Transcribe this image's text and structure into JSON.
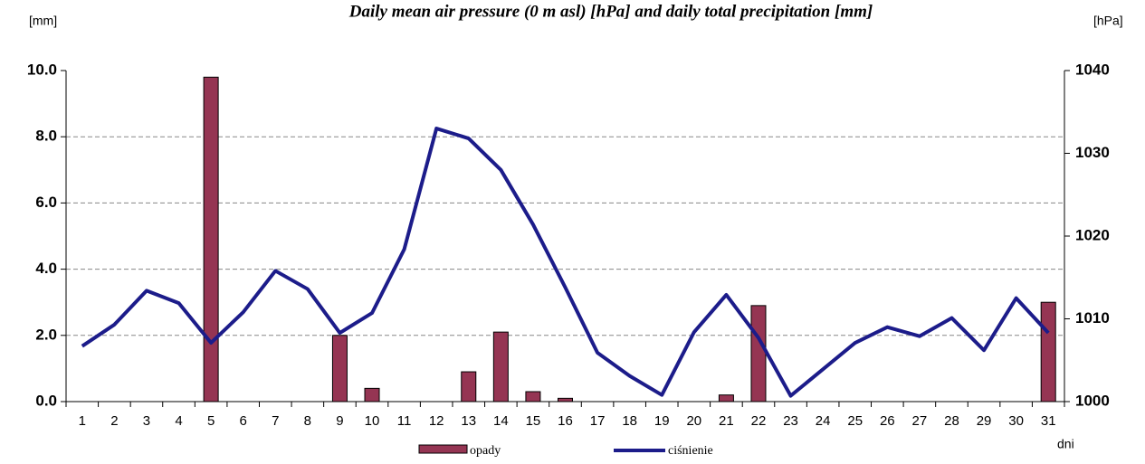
{
  "chart_data": {
    "type": "bar-line",
    "title": "Daily mean air pressure (0 m asl) [hPa] and daily total precipitation [mm]",
    "y_label": "[mm]",
    "y2_label": "[hPa]",
    "x_label": "dni",
    "categories": [
      "1",
      "2",
      "3",
      "4",
      "5",
      "6",
      "7",
      "8",
      "9",
      "10",
      "11",
      "12",
      "13",
      "14",
      "15",
      "16",
      "17",
      "18",
      "19",
      "20",
      "21",
      "22",
      "23",
      "24",
      "25",
      "26",
      "27",
      "28",
      "29",
      "30",
      "31"
    ],
    "series": [
      {
        "name": "opady",
        "type": "bar",
        "color": "#953553",
        "axis": "y",
        "values": [
          0,
          0,
          0,
          0,
          9.8,
          0,
          0,
          0,
          2.0,
          0.4,
          0,
          0,
          0.9,
          2.1,
          0.3,
          0.1,
          0,
          0,
          0,
          0,
          0.2,
          2.9,
          0,
          0,
          0,
          0,
          0,
          0,
          0,
          0,
          3.0
        ]
      },
      {
        "name": "ciśnienie",
        "type": "line",
        "color": "#1c1c8a",
        "axis": "y2",
        "values": [
          1006.7,
          1009.3,
          1013.4,
          1011.9,
          1007.1,
          1010.8,
          1015.8,
          1013.6,
          1008.3,
          1010.7,
          1018.4,
          1033.0,
          1031.8,
          1028.0,
          1021.4,
          1013.8,
          1005.9,
          1003.1,
          1000.8,
          1008.4,
          1012.9,
          1007.7,
          1000.7,
          1003.9,
          1007.1,
          1009.0,
          1007.9,
          1010.1,
          1006.2,
          1012.5,
          1008.3
        ]
      }
    ],
    "ylim": [
      0,
      10
    ],
    "yticks": [
      {
        "value": 0,
        "label": "0.0"
      },
      {
        "value": 2,
        "label": "2.0"
      },
      {
        "value": 4,
        "label": "4.0"
      },
      {
        "value": 6,
        "label": "6.0"
      },
      {
        "value": 8,
        "label": "8.0"
      },
      {
        "value": 10,
        "label": "10.0"
      }
    ],
    "y2lim": [
      1000,
      1040
    ],
    "y2ticks": [
      1000,
      1010,
      1020,
      1030,
      1040
    ],
    "grid": true
  }
}
